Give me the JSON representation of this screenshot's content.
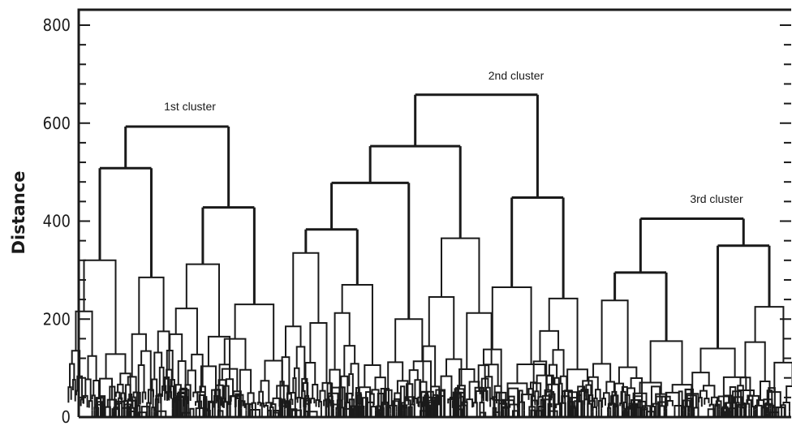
{
  "chart_data": {
    "type": "dendrogram",
    "ylabel": "Distance",
    "ylim": [
      0,
      800
    ],
    "y_ticks": [
      0,
      200,
      400,
      600,
      800
    ],
    "annotations": [
      "1st cluster",
      "2nd cluster",
      "3rd cluster"
    ],
    "clusters": [
      {
        "name": "1st cluster",
        "height": 593,
        "merges": [
          {
            "height": 508,
            "children": [
              {
                "height": 320
              },
              {
                "height": 285
              }
            ]
          },
          {
            "height": 428,
            "children": [
              {
                "height": 312
              },
              {
                "height": 230
              }
            ]
          }
        ]
      },
      {
        "name": "2nd cluster",
        "height": 658,
        "merges": [
          {
            "height": 553,
            "children": [
              {
                "height": 478,
                "children": [
                  {
                    "height": 383,
                    "children": [
                      {
                        "height": 335
                      },
                      {
                        "height": 270
                      }
                    ]
                  },
                  {
                    "height": 200
                  }
                ]
              },
              {
                "height": 365
              }
            ]
          },
          {
            "height": 448,
            "children": [
              {
                "height": 265
              },
              {
                "height": 242
              }
            ]
          }
        ]
      },
      {
        "name": "3rd cluster",
        "height": 405,
        "merges": [
          {
            "height": 295,
            "children": [
              {
                "height": 238
              },
              {
                "height": 155
              }
            ]
          },
          {
            "height": 350,
            "children": [
              {
                "height": 140
              },
              {
                "height": 225
              }
            ]
          }
        ]
      }
    ]
  }
}
